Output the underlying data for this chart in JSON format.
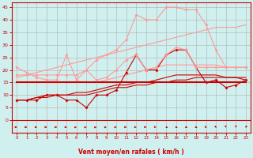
{
  "title": "",
  "xlabel": "Vent moyen/en rafales ( km/h )",
  "background_color": "#cff0ee",
  "grid_color": "#b0b0b0",
  "x_values": [
    0,
    1,
    2,
    3,
    4,
    5,
    6,
    7,
    8,
    9,
    10,
    11,
    12,
    13,
    14,
    15,
    16,
    17,
    18,
    19,
    20,
    21,
    22,
    23
  ],
  "lines": [
    {
      "y": [
        8,
        8,
        8,
        10,
        10,
        8,
        8,
        5,
        10,
        10,
        12,
        19,
        26,
        20,
        20,
        26,
        28,
        28,
        21,
        15,
        16,
        13,
        14,
        16
      ],
      "color": "#cc0000",
      "lw": 0.8,
      "marker": "D",
      "ms": 1.8,
      "zorder": 5,
      "linestyle": "-"
    },
    {
      "y": [
        15,
        15,
        15,
        15,
        15,
        15,
        15,
        15,
        15,
        15,
        15,
        15,
        15,
        15,
        15,
        15,
        15,
        15,
        15,
        15,
        15,
        15,
        15,
        15
      ],
      "color": "#cc0000",
      "lw": 1.5,
      "marker": null,
      "ms": 0,
      "zorder": 4,
      "linestyle": "-"
    },
    {
      "y": [
        8,
        8,
        9,
        9,
        10,
        10,
        10,
        10,
        11,
        12,
        13,
        13,
        14,
        14,
        15,
        15,
        16,
        16,
        17,
        17,
        17,
        17,
        17,
        17
      ],
      "color": "#cc0000",
      "lw": 0.8,
      "marker": null,
      "ms": 0,
      "zorder": 3,
      "linestyle": "-"
    },
    {
      "y": [
        8,
        8,
        9,
        10,
        10,
        10,
        11,
        11,
        12,
        13,
        14,
        14,
        15,
        15,
        16,
        17,
        18,
        18,
        18,
        18,
        18,
        17,
        17,
        16
      ],
      "color": "#cc0000",
      "lw": 0.8,
      "marker": null,
      "ms": 0,
      "zorder": 3,
      "linestyle": "-"
    },
    {
      "y": [
        18,
        18,
        18,
        18,
        18,
        18,
        18,
        20,
        24,
        26,
        28,
        32,
        42,
        40,
        40,
        45,
        45,
        44,
        44,
        38,
        28,
        21,
        21,
        21
      ],
      "color": "#ff9999",
      "lw": 0.8,
      "marker": "D",
      "ms": 1.8,
      "zorder": 5,
      "linestyle": "-"
    },
    {
      "y": [
        21,
        19,
        17,
        16,
        16,
        26,
        16,
        20,
        16,
        17,
        20,
        24,
        26,
        20,
        21,
        26,
        29,
        28,
        21,
        21,
        21,
        21,
        21,
        21
      ],
      "color": "#ff9999",
      "lw": 0.8,
      "marker": "D",
      "ms": 1.8,
      "zorder": 5,
      "linestyle": "-"
    },
    {
      "y": [
        17,
        18,
        19,
        20,
        21,
        22,
        23,
        24,
        25,
        26,
        27,
        28,
        29,
        30,
        31,
        32,
        33,
        34,
        35,
        36,
        37,
        37,
        37,
        38
      ],
      "color": "#ff9999",
      "lw": 0.8,
      "marker": null,
      "ms": 0,
      "zorder": 3,
      "linestyle": "-"
    },
    {
      "y": [
        15,
        15,
        15,
        15,
        15,
        15,
        15,
        15,
        15,
        16,
        17,
        18,
        19,
        20,
        21,
        22,
        22,
        22,
        22,
        22,
        22,
        21,
        21,
        21
      ],
      "color": "#ff9999",
      "lw": 0.8,
      "marker": null,
      "ms": 0,
      "zorder": 3,
      "linestyle": "-"
    }
  ],
  "arrow_angles": [
    90,
    90,
    90,
    90,
    90,
    90,
    70,
    65,
    65,
    70,
    75,
    95,
    100,
    105,
    110,
    130,
    140,
    145,
    150,
    160,
    165,
    175,
    180,
    190
  ],
  "ylim": [
    0,
    47
  ],
  "xlim": [
    -0.5,
    23.5
  ],
  "yticks": [
    0,
    5,
    10,
    15,
    20,
    25,
    30,
    35,
    40,
    45
  ],
  "xticks": [
    0,
    1,
    2,
    3,
    4,
    5,
    6,
    7,
    8,
    9,
    10,
    11,
    12,
    13,
    14,
    15,
    16,
    17,
    18,
    19,
    20,
    21,
    22,
    23
  ]
}
